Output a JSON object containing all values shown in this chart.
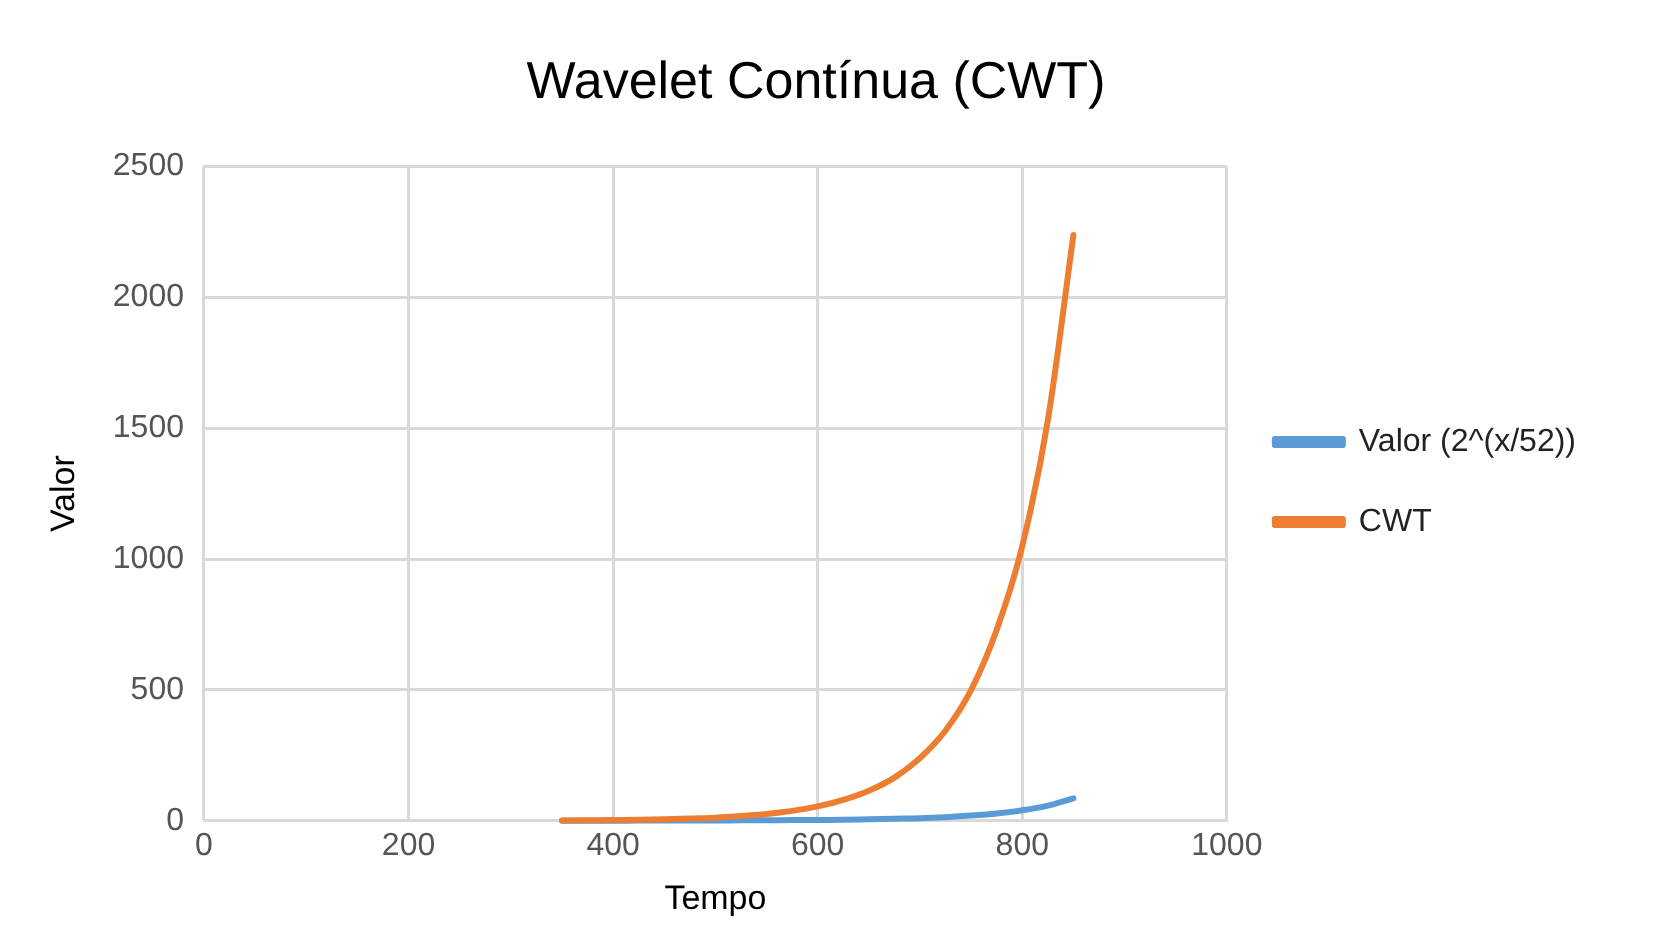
{
  "chart_data": {
    "type": "line",
    "title": "Wavelet Contínua (CWT)",
    "xlabel": "Tempo",
    "ylabel": "Valor",
    "x": [
      350,
      375,
      400,
      425,
      450,
      475,
      500,
      525,
      550,
      575,
      600,
      625,
      650,
      675,
      700,
      725,
      750,
      775,
      800,
      825,
      850
    ],
    "series": [
      {
        "name": "Valor (2^(x/52))",
        "color": "#5b9bd5",
        "values": [
          0,
          0,
          0,
          1,
          1,
          1,
          1,
          2,
          2,
          3,
          3,
          4,
          6,
          8,
          10,
          14,
          20,
          28,
          40,
          58,
          86
        ]
      },
      {
        "name": "CWT",
        "color": "#ed7d31",
        "values": [
          1,
          2,
          3,
          4,
          6,
          9,
          12,
          18,
          26,
          38,
          55,
          80,
          115,
          165,
          240,
          345,
          500,
          730,
          1050,
          1530,
          2238
        ]
      }
    ],
    "xlim": [
      0,
      1000
    ],
    "xticks": [
      0,
      200,
      400,
      600,
      800,
      1000
    ],
    "ylim": [
      0,
      2500
    ],
    "yticks": [
      0,
      500,
      1000,
      1500,
      2000,
      2500
    ],
    "grid": true,
    "legend": "right",
    "marker": "none",
    "line_style": "solid"
  }
}
